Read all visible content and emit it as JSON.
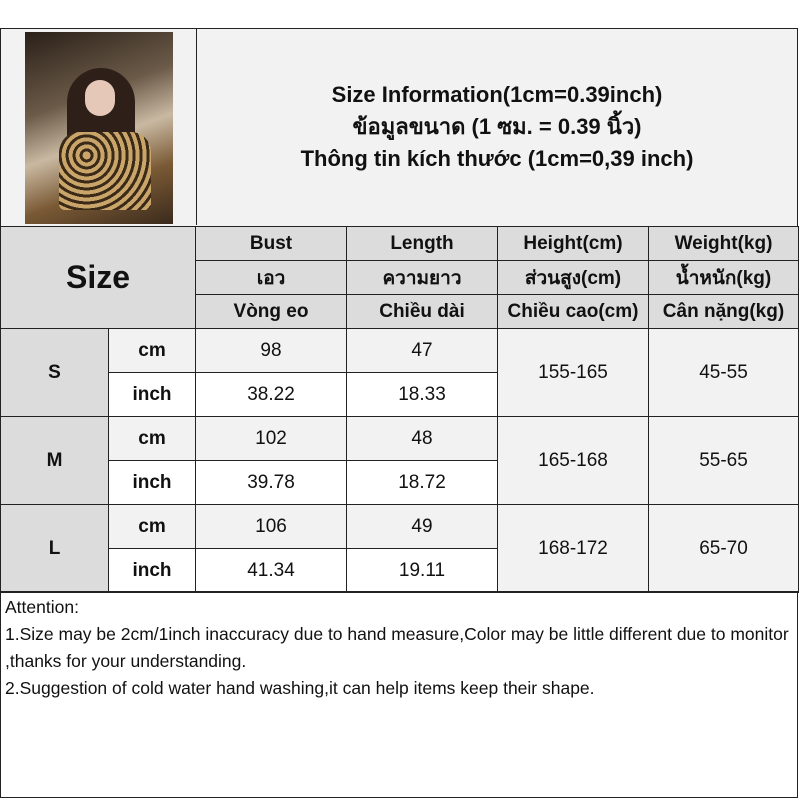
{
  "header": {
    "title_en": "Size Information(1cm=0.39inch)",
    "title_th": "ข้อมูลขนาด (1 ซม. = 0.39 นิ้ว)",
    "title_vi": "Thông tin kích thước (1cm=0,39 inch)",
    "photo_alt": "model wearing leopard print top"
  },
  "table": {
    "size_label": "Size",
    "columns": [
      {
        "en": "Bust",
        "th": "เอว",
        "vi": "Vòng eo"
      },
      {
        "en": "Length",
        "th": "ความยาว",
        "vi": "Chiều dài"
      },
      {
        "en": "Height(cm)",
        "th": "ส่วนสูง(cm)",
        "vi": "Chiều cao(cm)"
      },
      {
        "en": "Weight(kg)",
        "th": "น้ำหนัก(kg)",
        "vi": "Cân nặng(kg)"
      }
    ],
    "unit_cm": "cm",
    "unit_inch": "inch",
    "rows": [
      {
        "size": "S",
        "bust_cm": "98",
        "length_cm": "47",
        "bust_inch": "38.22",
        "length_inch": "18.33",
        "height": "155-165",
        "weight": "45-55"
      },
      {
        "size": "M",
        "bust_cm": "102",
        "length_cm": "48",
        "bust_inch": "39.78",
        "length_inch": "18.72",
        "height": "165-168",
        "weight": "55-65"
      },
      {
        "size": "L",
        "bust_cm": "106",
        "length_cm": "49",
        "bust_inch": "41.34",
        "length_inch": "19.11",
        "height": "168-172",
        "weight": "65-70"
      }
    ]
  },
  "notes": {
    "heading": "Attention:",
    "line1": "1.Size may be 2cm/1inch inaccuracy due to hand measure,Color may be little different due to monitor ,thanks for your understanding.",
    "line2": "2.Suggestion of cold water hand washing,it can help items keep their shape."
  }
}
